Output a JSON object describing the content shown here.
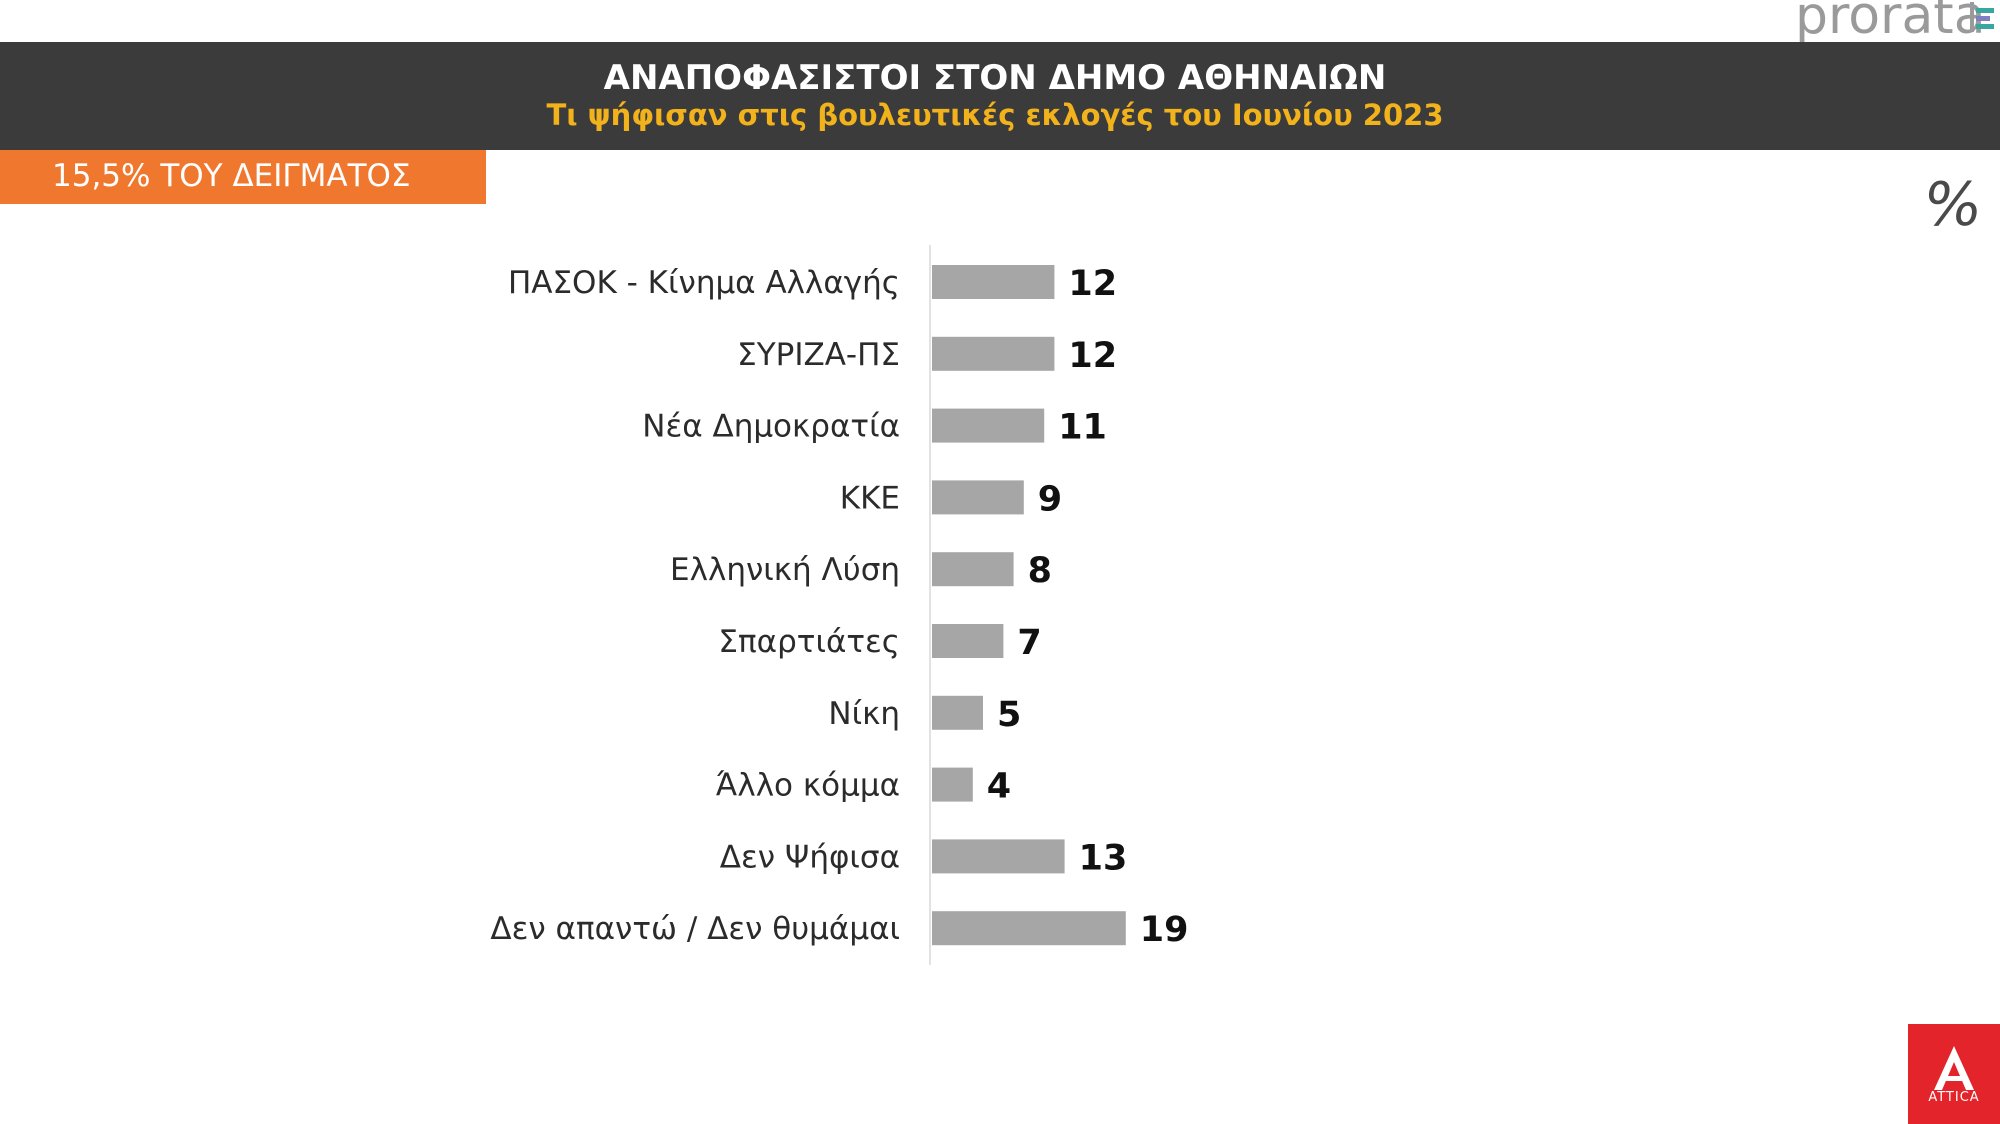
{
  "logo": {
    "name": "prorata"
  },
  "header": {
    "title": "ΑΝΑΠΟΦΑΣΙΣΤΟΙ ΣΤΟΝ ΔΗΜΟ ΑΘΗΝΑΙΩΝ",
    "subtitle": "Τι ψήφισαν στις βουλευτικές εκλογές του Ιουνίου 2023"
  },
  "tag": {
    "label": "15,5% ΤΟΥ ΔΕΙΓΜΑΤΟΣ",
    "color": "#f0772e"
  },
  "unit_symbol": "%",
  "brand": {
    "name": "ATTICA",
    "color": "#e3242b"
  },
  "colors": {
    "header_bg": "#3b3b3b",
    "subtitle": "#f2b21c",
    "bar": "#a6a6a6"
  },
  "chart_data": {
    "type": "bar",
    "orientation": "horizontal",
    "title": "ΑΝΑΠΟΦΑΣΙΣΤΟΙ ΣΤΟΝ ΔΗΜΟ ΑΘΗΝΑΙΩΝ",
    "subtitle": "Τι ψήφισαν στις βουλευτικές εκλογές του Ιουνίου 2023",
    "categories": [
      "ΠΑΣΟΚ - Κίνημα Αλλαγής",
      "ΣΥΡΙΖΑ-ΠΣ",
      "Νέα Δημοκρατία",
      "ΚΚΕ",
      "Ελληνική Λύση",
      "Σπαρτιάτες",
      "Νίκη",
      "Άλλο κόμμα",
      "Δεν Ψήφισα",
      "Δεν απαντώ / Δεν θυμάμαι"
    ],
    "values": [
      12,
      12,
      11,
      9,
      8,
      7,
      5,
      4,
      13,
      19
    ],
    "unit": "%",
    "grid": false,
    "data_labels": true
  }
}
